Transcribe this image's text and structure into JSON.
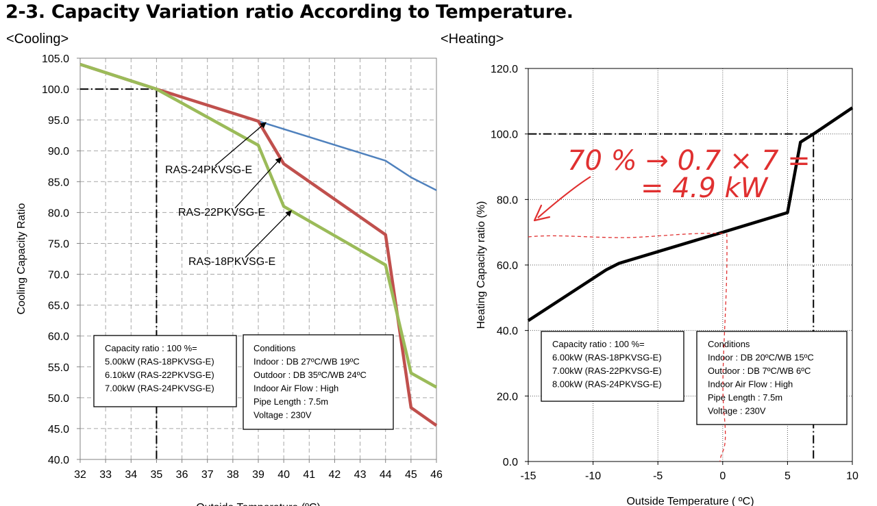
{
  "page": {
    "title": "2-3. Capacity Variation ratio According to Temperature.",
    "cooling_subtitle": "<Cooling>",
    "heating_subtitle": "<Heating>"
  },
  "colors": {
    "blue": "#4f81bd",
    "red": "#c0504d",
    "green": "#9bbb59",
    "black": "#000000",
    "annotation_red": "#e03030"
  },
  "chart_data": [
    {
      "type": "line",
      "ylabel": "Cooling Capacity Ratio",
      "xlabel": "Outside Temperature (ºC)",
      "xlim": [
        32,
        46
      ],
      "ylim": [
        40,
        105
      ],
      "x_ticks": [
        "32",
        "33",
        "34",
        "35",
        "36",
        "37",
        "38",
        "39",
        "40",
        "41",
        "42",
        "43",
        "44",
        "45",
        "46"
      ],
      "y_ticks": [
        "40.0",
        "45.0",
        "50.0",
        "55.0",
        "60.0",
        "65.0",
        "70.0",
        "75.0",
        "80.0",
        "85.0",
        "90.0",
        "95.0",
        "100.0",
        "105.0"
      ],
      "grid": "dashed",
      "reference_lines": {
        "x": 35,
        "y": 100
      },
      "series": [
        {
          "name": "RAS-24PKVSG-E",
          "color": "#4f81bd",
          "x": [
            32,
            35,
            39,
            44,
            45,
            46
          ],
          "y": [
            104,
            100,
            94.8,
            88.4,
            85.7,
            83.6
          ]
        },
        {
          "name": "RAS-22PKVSG-E",
          "color": "#c0504d",
          "x": [
            32,
            35,
            39,
            40,
            44,
            45,
            46
          ],
          "y": [
            104,
            100,
            94.8,
            87.9,
            76.4,
            48.4,
            45.5
          ]
        },
        {
          "name": "RAS-18PKVSG-E",
          "color": "#9bbb59",
          "x": [
            32,
            35,
            39,
            40,
            44,
            45,
            46
          ],
          "y": [
            104,
            100,
            90.9,
            81,
            71.5,
            54,
            51.7
          ]
        }
      ],
      "labels": [
        {
          "text": "RAS-24PKVSG-E",
          "points_to": [
            39.3,
            94.6
          ]
        },
        {
          "text": "RAS-22PKVSG-E",
          "points_to": [
            39.9,
            88.9
          ]
        },
        {
          "text": "RAS-18PKVSG-E",
          "points_to": [
            40.3,
            80.3
          ]
        }
      ],
      "capacity_box": [
        "Capacity ratio : 100 %=",
        "5.00kW (RAS-18PKVSG-E)",
        "6.10kW (RAS-22PKVSG-E)",
        "7.00kW (RAS-24PKVSG-E)"
      ],
      "conditions_box": [
        "Conditions",
        "Indoor : DB 27ºC/WB 19ºC",
        "Outdoor : DB 35ºC/WB 24ºC",
        "Indoor Air Flow : High",
        "Pipe Length : 7.5m",
        "Voltage : 230V"
      ]
    },
    {
      "type": "line",
      "ylabel": "Heating Capacity ratio (%)",
      "xlabel": "Outside Temperature ( ºC)",
      "xlim": [
        -15,
        10
      ],
      "ylim": [
        0,
        120
      ],
      "x_ticks": [
        "-15",
        "-10",
        "-5",
        "0",
        "5",
        "10"
      ],
      "y_ticks": [
        "0.0",
        "20.0",
        "40.0",
        "60.0",
        "80.0",
        "100.0",
        "120.0"
      ],
      "grid": "dotted",
      "reference_lines": {
        "x": 7,
        "y": 100
      },
      "series": [
        {
          "color": "#000000",
          "x": [
            -15,
            -9,
            -8,
            0,
            5,
            6,
            7,
            10
          ],
          "y": [
            43,
            58.5,
            60.5,
            70,
            76,
            97.5,
            100,
            108
          ]
        }
      ],
      "capacity_box": [
        "Capacity ratio : 100 %=",
        "6.00kW (RAS-18PKVSG-E)",
        "7.00kW (RAS-22PKVSG-E)",
        "8.00kW (RAS-24PKVSG-E)"
      ],
      "conditions_box": [
        "Conditions",
        "Indoor : DB 20ºC/WB 15ºC",
        "Outdoor : DB 7ºC/WB 6ºC",
        "Indoor Air Flow : High",
        "Pipe Length : 7.5m",
        "Voltage : 230V"
      ],
      "handwritten_annotation": {
        "line1": "70 % → 0.7 × 7 =",
        "line2": "= 4.9 kW",
        "marked_x": 0,
        "marked_y": 69
      }
    }
  ]
}
